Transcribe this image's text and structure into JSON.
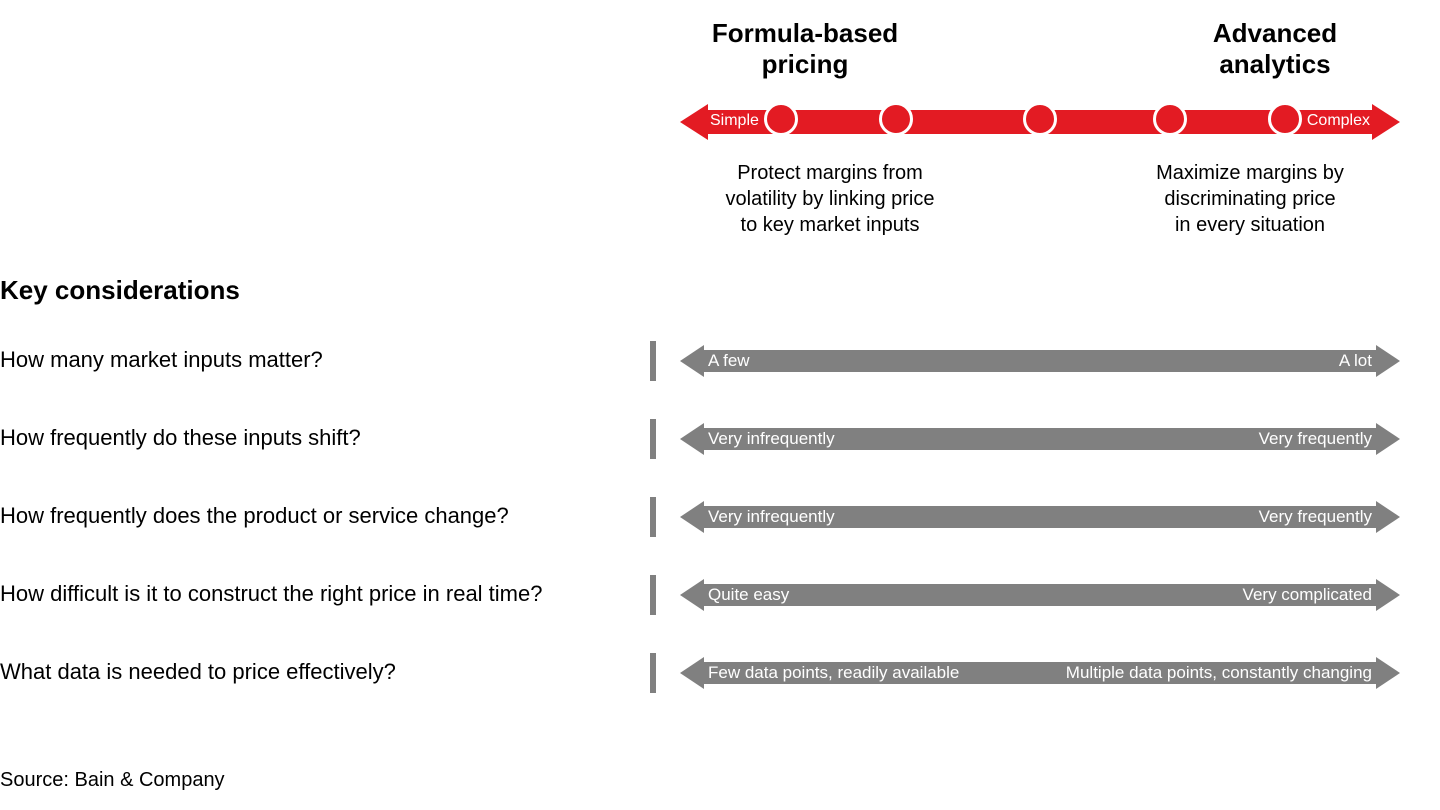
{
  "header": {
    "left_title": "Formula-based\npricing",
    "right_title": "Advanced\nanalytics"
  },
  "spectrum": {
    "left_label": "Simple",
    "right_label": "Complex",
    "bar_color": "#e31b23",
    "dot_count": 5,
    "dot_positions_pct": [
      14,
      30,
      50,
      68,
      84
    ],
    "left_subtitle": "Protect margins from\nvolatility by linking price\nto key market inputs",
    "right_subtitle": "Maximize margins by\ndiscriminating price\nin every situation"
  },
  "section_title": "Key considerations",
  "gray_color": "#808080",
  "rows": [
    {
      "question": "How many market inputs matter?",
      "left": "A few",
      "right": "A lot"
    },
    {
      "question": "How frequently do these inputs shift?",
      "left": "Very infrequently",
      "right": "Very frequently"
    },
    {
      "question": "How frequently does the product or service change?",
      "left": "Very infrequently",
      "right": "Very frequently"
    },
    {
      "question": "How difficult is it to construct the right price in real time?",
      "left": "Quite easy",
      "right": "Very complicated"
    },
    {
      "question": "What data is needed to price effectively?",
      "left": "Few data points, readily available",
      "right": "Multiple data points, constantly changing"
    }
  ],
  "source": "Source: Bain & Company"
}
